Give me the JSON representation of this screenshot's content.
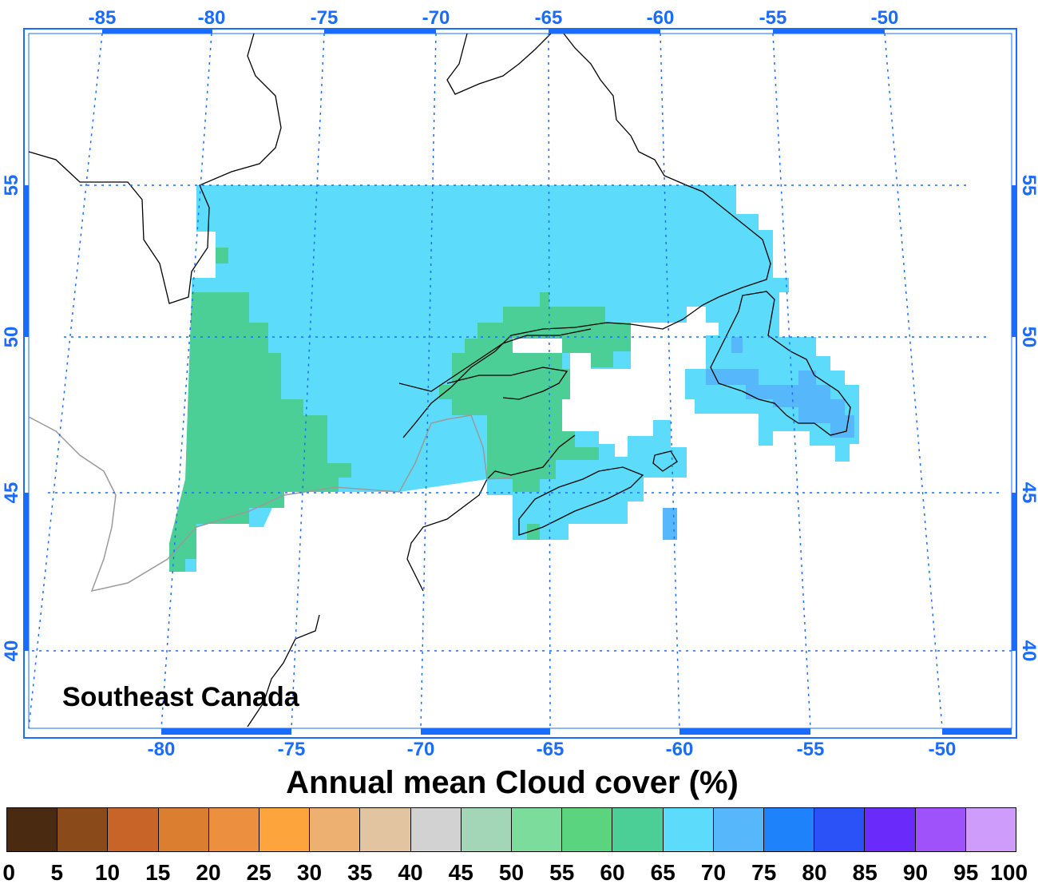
{
  "map": {
    "region_label": "Southeast Canada",
    "lon_ticks_top": [
      "-85",
      "-80",
      "-75",
      "-70",
      "-65",
      "-60",
      "-55",
      "-50"
    ],
    "lon_ticks_bottom": [
      "-80",
      "-75",
      "-70",
      "-65",
      "-60",
      "-55",
      "-50"
    ],
    "lat_ticks": [
      "55",
      "50",
      "45",
      "40"
    ],
    "tick_color": "#1a6cff",
    "graticule_color": "#1a6cff"
  },
  "legend": {
    "title": "Annual mean Cloud cover (%)",
    "labels": [
      "0",
      "5",
      "10",
      "15",
      "20",
      "25",
      "30",
      "35",
      "40",
      "45",
      "50",
      "55",
      "60",
      "65",
      "70",
      "75",
      "80",
      "85",
      "90",
      "95",
      "100"
    ],
    "colors": [
      "#4a2a10",
      "#8a4a1a",
      "#c86428",
      "#dc7e30",
      "#ec9040",
      "#fda43c",
      "#eeb070",
      "#e2c4a0",
      "#d2d2d2",
      "#a2d6b6",
      "#7cdc9c",
      "#5ad47e",
      "#4ccf96",
      "#5cdcfa",
      "#56b8fa",
      "#1e82fa",
      "#2a52f6",
      "#6a2afa",
      "#a052fa",
      "#ce9cfa"
    ]
  }
}
